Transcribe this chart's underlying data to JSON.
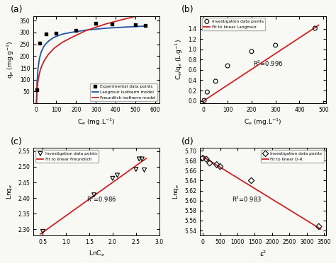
{
  "panel_a": {
    "exp_x": [
      2,
      15,
      50,
      100,
      200,
      300,
      380,
      500,
      550
    ],
    "exp_y": [
      58,
      255,
      293,
      298,
      308,
      338,
      335,
      332,
      330
    ],
    "langmuir_x": [
      0,
      3,
      8,
      15,
      25,
      40,
      60,
      90,
      130,
      180,
      250,
      350,
      450,
      550
    ],
    "langmuir_y": [
      0,
      90,
      148,
      190,
      220,
      245,
      263,
      280,
      293,
      301,
      310,
      318,
      323,
      327
    ],
    "freundlich_x": [
      0,
      3,
      8,
      15,
      25,
      40,
      60,
      90,
      130,
      180,
      250,
      350,
      450,
      550
    ],
    "freundlich_y": [
      0,
      58,
      95,
      128,
      155,
      182,
      207,
      234,
      258,
      280,
      308,
      336,
      358,
      378
    ],
    "xlabel": "C$_e$ (mg.L$^{-1}$)",
    "ylabel": "q$_e$ (mg.g$^{-1}$)",
    "label": "(a)",
    "xlim": [
      -15,
      620
    ],
    "ylim": [
      0,
      370
    ],
    "xticks": [
      0,
      100,
      200,
      300,
      400,
      500,
      600
    ],
    "yticks": [
      50,
      100,
      150,
      200,
      250,
      300,
      350
    ],
    "legend": [
      "Experimental data points",
      "Langmuir isotherm model",
      "Freundlich isotherm model"
    ]
  },
  "panel_b": {
    "data_x": [
      2,
      15,
      50,
      100,
      200,
      300,
      465
    ],
    "data_y": [
      0.007,
      0.17,
      0.38,
      0.68,
      0.96,
      1.08,
      1.41
    ],
    "fit_x": [
      0,
      480
    ],
    "fit_y": [
      0.0,
      1.47
    ],
    "xlabel": "C$_e$ (mg.L$^{-1}$)",
    "ylabel": "C$_e$/q$_e$ (L.g$^{-1}$)",
    "label": "(b)",
    "r2": "R$^2$=0.996",
    "xlim": [
      -15,
      510
    ],
    "ylim": [
      -0.05,
      1.65
    ],
    "xticks": [
      0,
      100,
      200,
      300,
      400,
      500
    ],
    "yticks": [
      0.0,
      0.2,
      0.4,
      0.6,
      0.8,
      1.0,
      1.2,
      1.4
    ],
    "legend": [
      "Investigation data points",
      "Fit to linear Langmuir"
    ]
  },
  "panel_c": {
    "data_x": [
      0.5,
      1.6,
      2.0,
      2.1,
      2.5,
      2.57,
      2.63,
      2.68
    ],
    "data_y": [
      2.293,
      2.41,
      2.463,
      2.473,
      2.492,
      2.525,
      2.525,
      2.49
    ],
    "fit_x": [
      0.45,
      2.72
    ],
    "fit_y": [
      2.285,
      2.527
    ],
    "xlabel": "LnC$_e$",
    "ylabel": "Lnq$_e$",
    "label": "(c)",
    "r2": "R$^2$=0.986",
    "xlim": [
      0.3,
      3.0
    ],
    "ylim": [
      2.28,
      2.56
    ],
    "xticks": [
      0.5,
      1.0,
      1.5,
      2.0,
      2.5,
      3.0
    ],
    "yticks": [
      2.3,
      2.35,
      2.4,
      2.45,
      2.5,
      2.55
    ],
    "legend": [
      "Investigation data points",
      "Fit to linear Freundlich"
    ]
  },
  "panel_d": {
    "data_x": [
      0,
      100,
      200,
      400,
      500,
      1400,
      3350
    ],
    "data_y": [
      5.685,
      5.683,
      5.675,
      5.672,
      5.668,
      5.64,
      5.548
    ],
    "fit_x": [
      0,
      3400
    ],
    "fit_y": [
      5.688,
      5.543
    ],
    "xlabel": "ε$^2$",
    "ylabel": "Lnq$_e$",
    "label": "(d)",
    "r2": "R$^2$=0.983",
    "xlim": [
      -80,
      3550
    ],
    "ylim": [
      5.53,
      5.705
    ],
    "xticks": [
      0,
      500,
      1000,
      1500,
      2000,
      2500,
      3000,
      3500
    ],
    "yticks": [
      5.54,
      5.56,
      5.58,
      5.6,
      5.62,
      5.64,
      5.66,
      5.68,
      5.7
    ],
    "legend": [
      "Investigation data points",
      "Fit to linear D-R"
    ]
  },
  "colors": {
    "red": "#cc2222",
    "blue": "#2255aa",
    "background": "#f8f8f5"
  }
}
